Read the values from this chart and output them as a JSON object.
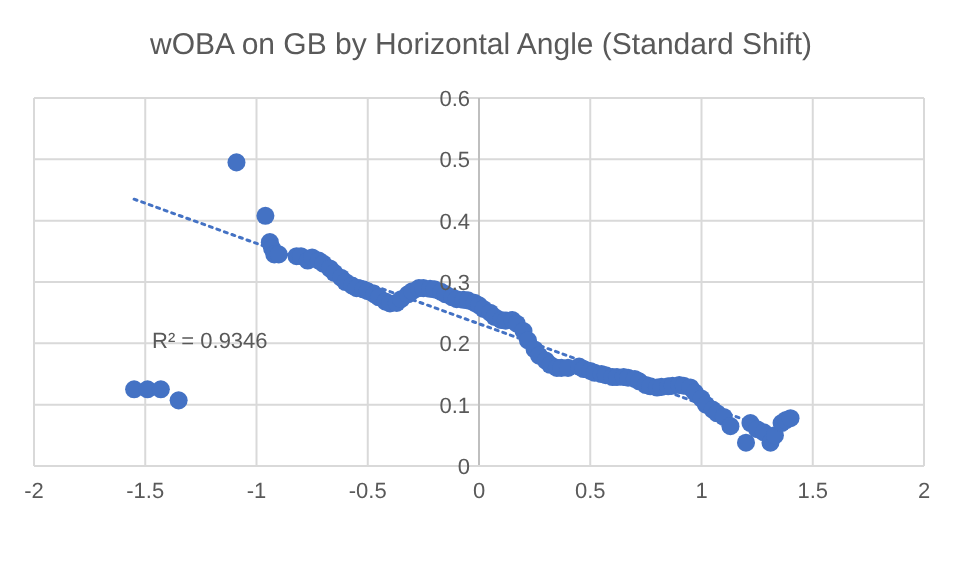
{
  "chart_data": {
    "type": "scatter",
    "title": "wOBA on GB by Horizontal Angle (Standard Shift)",
    "grid": true,
    "xlim": [
      -2,
      2
    ],
    "xticks": [
      -2,
      -1.5,
      -1,
      -0.5,
      0,
      0.5,
      1,
      1.5,
      2
    ],
    "ylim": [
      0,
      0.6
    ],
    "yticks": [
      0,
      0.1,
      0.2,
      0.3,
      0.4,
      0.5,
      0.6
    ],
    "annotations": [
      "R² = 0.9346"
    ],
    "series": [
      {
        "color": "#4472c4",
        "marker": "circle",
        "x": [
          -1.55,
          -1.49,
          -1.43,
          -1.35,
          -1.09,
          -0.96,
          -0.94,
          -0.93,
          -0.92,
          -0.9,
          -0.82,
          -0.8,
          -0.77,
          -0.75,
          -0.72,
          -0.7,
          -0.67,
          -0.65,
          -0.62,
          -0.6,
          -0.57,
          -0.55,
          -0.52,
          -0.5,
          -0.47,
          -0.45,
          -0.42,
          -0.4,
          -0.37,
          -0.35,
          -0.32,
          -0.3,
          -0.27,
          -0.25,
          -0.22,
          -0.2,
          -0.17,
          -0.15,
          -0.12,
          -0.1,
          -0.07,
          -0.05,
          -0.02,
          0,
          0.02,
          0.05,
          0.07,
          0.1,
          0.12,
          0.15,
          0.17,
          0.2,
          0.22,
          0.25,
          0.27,
          0.3,
          0.32,
          0.35,
          0.37,
          0.4,
          0.45,
          0.47,
          0.5,
          0.52,
          0.55,
          0.57,
          0.6,
          0.62,
          0.65,
          0.67,
          0.7,
          0.72,
          0.75,
          0.77,
          0.8,
          0.82,
          0.85,
          0.87,
          0.9,
          0.92,
          0.95,
          0.97,
          1,
          1.02,
          1.05,
          1.07,
          1.1,
          1.13,
          1.2,
          1.22,
          1.25,
          1.28,
          1.31,
          1.33,
          1.36,
          1.38,
          1.4
        ],
        "values": [
          0.125,
          0.125,
          0.125,
          0.107,
          0.495,
          0.408,
          0.365,
          0.355,
          0.345,
          0.345,
          0.342,
          0.342,
          0.335,
          0.34,
          0.335,
          0.33,
          0.322,
          0.315,
          0.307,
          0.3,
          0.294,
          0.29,
          0.288,
          0.285,
          0.28,
          0.275,
          0.268,
          0.265,
          0.266,
          0.272,
          0.28,
          0.285,
          0.29,
          0.29,
          0.289,
          0.288,
          0.284,
          0.28,
          0.275,
          0.272,
          0.271,
          0.27,
          0.266,
          0.262,
          0.256,
          0.25,
          0.243,
          0.238,
          0.237,
          0.238,
          0.232,
          0.22,
          0.205,
          0.19,
          0.18,
          0.172,
          0.165,
          0.16,
          0.16,
          0.16,
          0.162,
          0.158,
          0.155,
          0.152,
          0.15,
          0.148,
          0.145,
          0.145,
          0.145,
          0.144,
          0.142,
          0.138,
          0.132,
          0.13,
          0.128,
          0.129,
          0.13,
          0.131,
          0.132,
          0.131,
          0.128,
          0.12,
          0.11,
          0.1,
          0.092,
          0.086,
          0.08,
          0.065,
          0.038,
          0.07,
          0.06,
          0.055,
          0.038,
          0.05,
          0.07,
          0.075,
          0.078
        ]
      },
      {
        "type": "line",
        "color": "#4472c4",
        "line_style": "dotted",
        "x": [
          -1.55,
          1.35
        ],
        "values": [
          0.435,
          0.055
        ]
      }
    ]
  }
}
